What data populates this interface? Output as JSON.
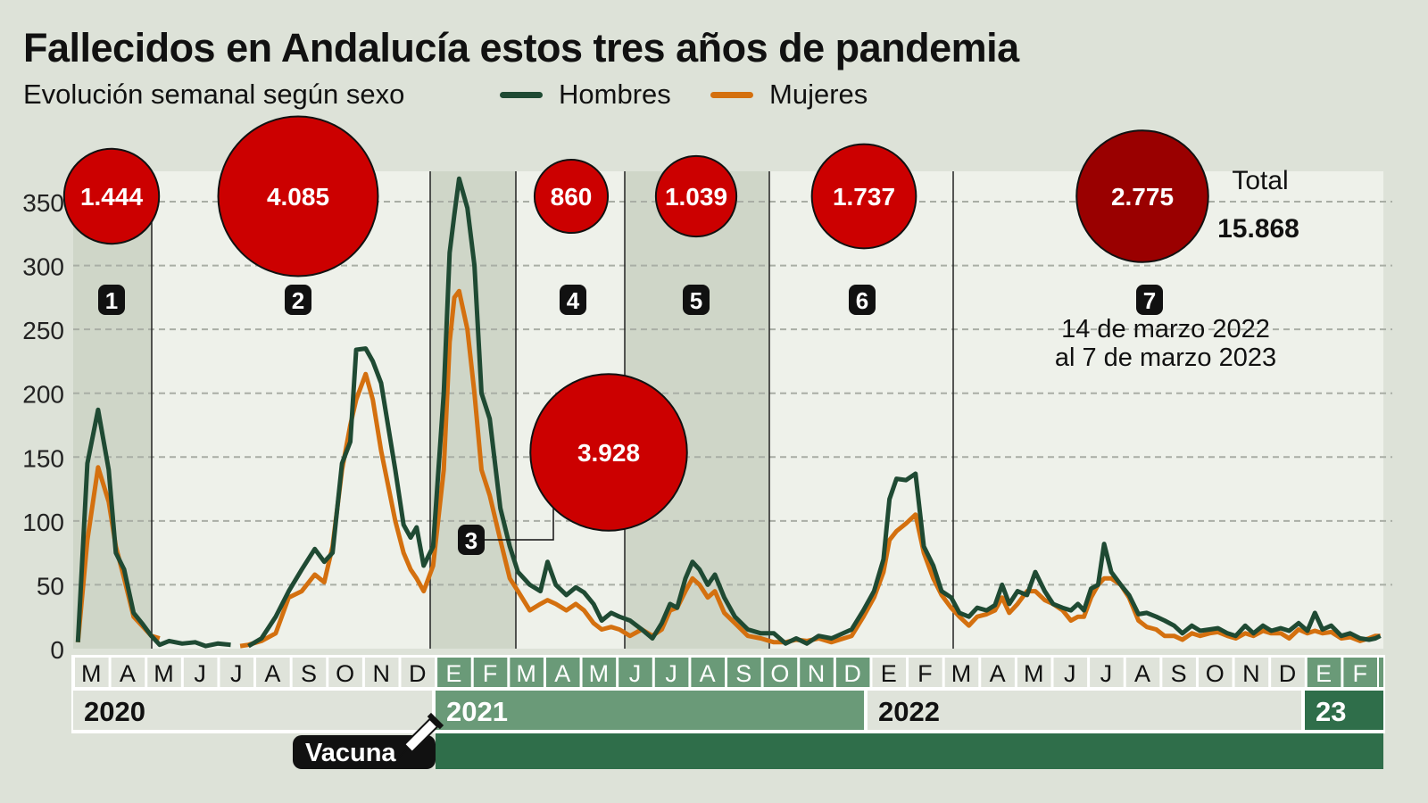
{
  "title": "Fallecidos en Andalucía estos tres años de pandemia",
  "subtitle": "Evolución semanal según sexo",
  "colors": {
    "hombres": "#1f4a33",
    "mujeres": "#d4700f",
    "wave_circle": "#cc0000",
    "wave_circle_last": "#9a0000",
    "green_strip": "#6a9a78",
    "dark_green": "#2f6e4a"
  },
  "chart_data": {
    "type": "line",
    "title": "Fallecidos en Andalucía estos tres años de pandemia",
    "subtitle": "Evolución semanal según sexo",
    "xlabel": "",
    "ylabel": "",
    "ylim": [
      0,
      370
    ],
    "yticks": [
      "0",
      "50",
      "100",
      "150",
      "200",
      "250",
      "300",
      "350"
    ],
    "ytick_values": [
      0,
      50,
      100,
      150,
      200,
      250,
      300,
      350
    ],
    "grid": true,
    "legend": "top",
    "x": [
      "2020-03-05",
      "2020-03-13",
      "2020-03-22",
      "2020-03-31",
      "2020-04-06",
      "2020-04-13",
      "2020-04-21",
      "2020-04-28",
      "2020-05-06",
      "2020-05-13",
      "2020-05-21",
      "2020-06-01",
      "2020-06-12",
      "2020-06-21",
      "2020-07-01",
      "2020-07-12",
      "2020-07-20",
      "2020-07-27",
      "2020-08-07",
      "2020-08-19",
      "2020-08-30",
      "2020-09-10",
      "2020-09-21",
      "2020-09-29",
      "2020-10-06",
      "2020-10-14",
      "2020-10-21",
      "2020-10-26",
      "2020-11-03",
      "2020-11-09",
      "2020-11-16",
      "2020-11-28",
      "2020-12-05",
      "2020-12-11",
      "2020-12-16",
      "2020-12-22",
      "2020-12-30",
      "2021-01-08",
      "2021-01-13",
      "2021-01-17",
      "2021-01-21",
      "2021-01-28",
      "2021-02-03",
      "2021-02-09",
      "2021-02-16",
      "2021-02-25",
      "2021-03-05",
      "2021-03-12",
      "2021-03-22",
      "2021-03-31",
      "2021-04-06",
      "2021-04-13",
      "2021-04-22",
      "2021-04-30",
      "2021-05-07",
      "2021-05-15",
      "2021-05-22",
      "2021-05-30",
      "2021-06-06",
      "2021-06-15",
      "2021-06-25",
      "2021-07-04",
      "2021-07-12",
      "2021-07-19",
      "2021-07-25",
      "2021-08-01",
      "2021-08-07",
      "2021-08-13",
      "2021-08-20",
      "2021-08-26",
      "2021-09-03",
      "2021-09-12",
      "2021-09-23",
      "2021-10-04",
      "2021-10-15",
      "2021-10-25",
      "2021-11-03",
      "2021-11-12",
      "2021-11-22",
      "2021-12-03",
      "2021-12-20",
      "2021-12-30",
      "2022-01-08",
      "2022-01-16",
      "2022-01-21",
      "2022-01-27",
      "2022-02-04",
      "2022-02-12",
      "2022-02-19",
      "2022-02-27",
      "2022-03-06",
      "2022-03-14",
      "2022-03-21",
      "2022-03-29",
      "2022-04-05",
      "2022-04-13",
      "2022-04-20",
      "2022-04-26",
      "2022-05-02",
      "2022-05-09",
      "2022-05-17",
      "2022-05-24",
      "2022-06-01",
      "2022-06-08",
      "2022-06-16",
      "2022-06-23",
      "2022-06-29",
      "2022-07-04",
      "2022-07-10",
      "2022-07-16",
      "2022-07-21",
      "2022-07-27",
      "2022-08-04",
      "2022-08-11",
      "2022-08-19",
      "2022-08-26",
      "2022-09-03",
      "2022-09-10",
      "2022-09-18",
      "2022-09-25",
      "2022-10-03",
      "2022-10-10",
      "2022-10-18",
      "2022-10-25",
      "2022-11-02",
      "2022-11-09",
      "2022-11-17",
      "2022-11-24",
      "2022-12-02",
      "2022-12-09",
      "2022-12-17",
      "2022-12-24",
      "2023-01-01",
      "2023-01-08",
      "2023-01-14",
      "2023-01-20",
      "2023-01-27",
      "2023-02-04",
      "2023-02-11",
      "2023-02-19",
      "2023-02-26",
      "2023-03-03",
      "2023-03-07"
    ],
    "series": [
      {
        "name": "Hombres",
        "values": [
          5,
          145,
          187,
          140,
          75,
          62,
          28,
          20,
          10,
          3,
          6,
          4,
          5,
          2,
          4,
          3,
          null,
          2,
          8,
          25,
          45,
          62,
          78,
          68,
          75,
          145,
          162,
          234,
          235,
          225,
          208,
          140,
          97,
          87,
          95,
          65,
          80,
          200,
          310,
          340,
          368,
          345,
          300,
          200,
          180,
          110,
          80,
          60,
          50,
          45,
          68,
          50,
          42,
          48,
          44,
          35,
          22,
          28,
          25,
          22,
          15,
          8,
          20,
          35,
          32,
          55,
          68,
          62,
          50,
          58,
          40,
          25,
          15,
          12,
          12,
          4,
          8,
          4,
          10,
          8,
          15,
          30,
          45,
          70,
          117,
          133,
          132,
          137,
          80,
          65,
          45,
          40,
          28,
          25,
          32,
          30,
          34,
          50,
          35,
          45,
          42,
          60,
          45,
          35,
          32,
          30,
          35,
          30,
          47,
          50,
          82,
          60,
          50,
          42,
          27,
          28,
          25,
          22,
          18,
          12,
          18,
          14,
          15,
          16,
          12,
          10,
          18,
          12,
          18,
          14,
          16,
          14,
          20,
          14,
          28,
          15,
          18,
          10,
          12,
          8,
          7,
          8,
          10
        ]
      },
      {
        "name": "Mujeres",
        "values": [
          5,
          85,
          142,
          115,
          80,
          55,
          25,
          18,
          10,
          8,
          null,
          null,
          null,
          null,
          null,
          null,
          2,
          3,
          6,
          12,
          40,
          45,
          58,
          52,
          80,
          140,
          175,
          195,
          215,
          195,
          155,
          100,
          75,
          62,
          55,
          45,
          65,
          140,
          240,
          275,
          280,
          250,
          200,
          140,
          120,
          85,
          55,
          45,
          30,
          35,
          38,
          35,
          30,
          35,
          30,
          20,
          15,
          17,
          15,
          10,
          15,
          10,
          15,
          30,
          32,
          45,
          55,
          50,
          40,
          45,
          28,
          20,
          10,
          8,
          5,
          5,
          7,
          6,
          8,
          5,
          10,
          25,
          40,
          60,
          85,
          92,
          98,
          105,
          75,
          55,
          42,
          32,
          25,
          18,
          25,
          27,
          30,
          40,
          28,
          35,
          45,
          45,
          38,
          35,
          30,
          22,
          25,
          25,
          40,
          50,
          55,
          55,
          50,
          40,
          22,
          17,
          15,
          10,
          10,
          7,
          12,
          10,
          12,
          13,
          10,
          8,
          12,
          10,
          14,
          12,
          12,
          8,
          15,
          12,
          14,
          12,
          13,
          8,
          9,
          6,
          8,
          10,
          10
        ]
      }
    ],
    "waves": [
      {
        "number": "1",
        "total": "1.444",
        "value": 1444
      },
      {
        "number": "2",
        "total": "4.085",
        "value": 4085
      },
      {
        "number": "3",
        "total": "3.928",
        "value": 3928
      },
      {
        "number": "4",
        "total": "860",
        "value": 860
      },
      {
        "number": "5",
        "total": "1.039",
        "value": 1039
      },
      {
        "number": "6",
        "total": "1.737",
        "value": 1737
      },
      {
        "number": "7",
        "total": "2.775",
        "value": 2775
      }
    ],
    "wave7_note_line1": "14 de marzo 2022",
    "wave7_note_line2": "al 7 de marzo 2023",
    "total_label": "Total",
    "total_value": "15.868",
    "months": [
      "M",
      "A",
      "M",
      "J",
      "J",
      "A",
      "S",
      "O",
      "N",
      "D",
      "E",
      "F",
      "M",
      "A",
      "M",
      "J",
      "J",
      "A",
      "S",
      "O",
      "N",
      "D",
      "E",
      "F",
      "M",
      "A",
      "M",
      "J",
      "J",
      "A",
      "S",
      "O",
      "N",
      "D",
      "E",
      "F"
    ],
    "years": [
      "2020",
      "2021",
      "2022",
      "23"
    ],
    "vaccine_label": "Vacuna"
  }
}
